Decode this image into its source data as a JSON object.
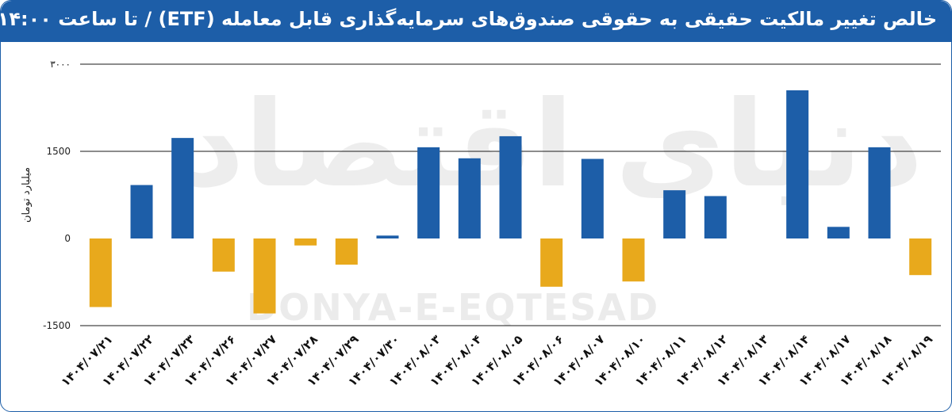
{
  "header": {
    "title": "خالص تغییر مالکیت حقیقی به حقوقی صندوق‌های سرمایه‌گذاری قابل معامله (ETF) / تا ساعت ۱۴:۰۰",
    "background": "#1d5ea8"
  },
  "watermark": {
    "persian": "دنیای اقتصاد",
    "latin": "DONYA-E-EQTESAD"
  },
  "chart_data": {
    "type": "bar",
    "ylabel": "میلیارد تومان",
    "ylim": [
      -1500,
      3000
    ],
    "yticks": [
      {
        "value": 3000,
        "label": "۳۰۰۰"
      },
      {
        "value": 1500,
        "label": "1500"
      },
      {
        "value": 0,
        "label": "0"
      },
      {
        "value": -1500,
        "label": "-1500"
      }
    ],
    "grid": true,
    "categories": [
      "۱۴۰۴/۰۷/۲۱",
      "۱۴۰۴/۰۷/۲۲",
      "۱۴۰۴/۰۷/۲۳",
      "۱۴۰۴/۰۷/۲۶",
      "۱۴۰۴/۰۷/۲۷",
      "۱۴۰۴/۰۷/۲۸",
      "۱۴۰۴/۰۷/۲۹",
      "۱۴۰۴/۰۷/۳۰",
      "۱۴۰۴/۰۸/۰۳",
      "۱۴۰۴/۰۸/۰۴",
      "۱۴۰۴/۰۸/۰۵",
      "۱۴۰۴/۰۸/۰۶",
      "۱۴۰۴/۰۸/۰۷",
      "۱۴۰۴/۰۸/۱۰",
      "۱۴۰۴/۰۸/۱۱",
      "۱۴۰۴/۰۸/۱۲",
      "۱۴۰۴/۰۸/۱۳",
      "۱۴۰۴/۰۸/۱۴",
      "۱۴۰۴/۰۸/۱۷",
      "۱۴۰۴/۰۸/۱۸",
      "۱۴۰۴/۰۸/۱۹"
    ],
    "values": [
      -1180,
      920,
      1730,
      -570,
      -1290,
      -120,
      -450,
      50,
      1570,
      1380,
      1760,
      -830,
      1370,
      -740,
      830,
      730,
      0,
      2550,
      200,
      1570,
      -630
    ],
    "colors": {
      "positive": "#1d5ea8",
      "negative": "#e8a91c",
      "grid": "#1a1a1a"
    }
  }
}
